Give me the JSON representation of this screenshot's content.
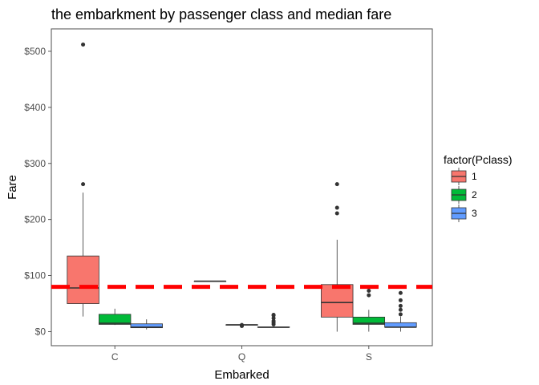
{
  "chart_data": {
    "type": "box",
    "title": "the embarkment by passenger class and median fare",
    "xlabel": "Embarked",
    "ylabel": "Fare",
    "categories": [
      "C",
      "Q",
      "S"
    ],
    "ylim": [
      -25,
      540
    ],
    "yticks": [
      0,
      100,
      200,
      300,
      400,
      500
    ],
    "ytick_labels": [
      "$0",
      "$100",
      "$200",
      "$300",
      "$400",
      "$500"
    ],
    "grid": false,
    "legend": {
      "title": "factor(Pclass)",
      "position": "right",
      "entries": [
        "1",
        "2",
        "3"
      ]
    },
    "reference_line": {
      "value": 80,
      "color": "#ff0000",
      "style": "dashed"
    },
    "series": [
      {
        "name": "1",
        "color": "#f8766d",
        "boxes": [
          {
            "category": "C",
            "q1": 50,
            "median": 78,
            "q3": 135,
            "whisker_low": 27,
            "whisker_high": 248,
            "outliers": [
              263,
              512
            ]
          },
          {
            "category": "Q",
            "q1": 90,
            "median": 90,
            "q3": 90,
            "whisker_low": 90,
            "whisker_high": 90,
            "outliers": []
          },
          {
            "category": "S",
            "q1": 26,
            "median": 52,
            "q3": 84,
            "whisker_low": 0,
            "whisker_high": 164,
            "outliers": [
              211,
              221,
              263
            ]
          }
        ]
      },
      {
        "name": "2",
        "color": "#00ba38",
        "boxes": [
          {
            "category": "C",
            "q1": 13,
            "median": 15,
            "q3": 31,
            "whisker_low": 12,
            "whisker_high": 41,
            "outliers": []
          },
          {
            "category": "Q",
            "q1": 12.35,
            "median": 12.35,
            "q3": 12.35,
            "whisker_low": 12.35,
            "whisker_high": 12.35,
            "outliers": [
              10,
              12
            ]
          },
          {
            "category": "S",
            "q1": 13,
            "median": 15,
            "q3": 26,
            "whisker_low": 0,
            "whisker_high": 39,
            "outliers": [
              65,
              73
            ]
          }
        ]
      },
      {
        "name": "3",
        "color": "#619cff",
        "boxes": [
          {
            "category": "C",
            "q1": 7,
            "median": 8,
            "q3": 14,
            "whisker_low": 4,
            "whisker_high": 22,
            "outliers": []
          },
          {
            "category": "Q",
            "q1": 7.75,
            "median": 7.75,
            "q3": 8.5,
            "whisker_low": 6.75,
            "whisker_high": 8.5,
            "outliers": [
              13,
              16,
              19,
              24,
              29,
              30
            ]
          },
          {
            "category": "S",
            "q1": 8,
            "median": 8,
            "q3": 16,
            "whisker_low": 0,
            "whisker_high": 27,
            "outliers": [
              31,
              39,
              46,
              56,
              69
            ]
          }
        ]
      }
    ]
  }
}
